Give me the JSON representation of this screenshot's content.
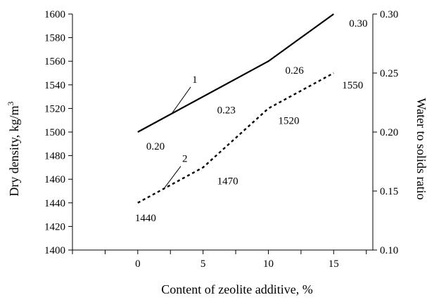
{
  "chart_data": {
    "type": "line",
    "xlabel": "Content of zeolite additive, %",
    "ylabel_left": "Dry density, kg/m",
    "ylabel_left_sup": "3",
    "ylabel_right": "Water to solids ratio",
    "x_ticks": [
      "0",
      "5",
      "10",
      "15"
    ],
    "xlim": [
      -5,
      18
    ],
    "ylim_left": [
      1400,
      1600
    ],
    "y_left_ticks": [
      "1400",
      "1420",
      "1440",
      "1460",
      "1480",
      "1500",
      "1520",
      "1540",
      "1560",
      "1580",
      "1600"
    ],
    "ylim_right": [
      0.1,
      0.3
    ],
    "y_right_ticks": [
      "0.10",
      "0.15",
      "0.20",
      "0.25",
      "0.30"
    ],
    "grid": false,
    "legend": "none",
    "series": [
      {
        "name": "1",
        "axis": "right",
        "style": "solid",
        "x": [
          0,
          10,
          15
        ],
        "y": [
          0.2,
          0.26,
          0.3
        ]
      },
      {
        "name": "2",
        "axis": "left",
        "style": "dotted",
        "x": [
          0,
          2,
          5,
          10,
          15
        ],
        "y": [
          1440,
          1452,
          1470,
          1520,
          1550
        ]
      }
    ],
    "point_labels": [
      {
        "text": "0.20",
        "series": 0,
        "x": 0,
        "y": 0.2
      },
      {
        "text": "0.23",
        "series": 0,
        "x": 5,
        "y": 0.23
      },
      {
        "text": "0.26",
        "series": 0,
        "x": 10,
        "y": 0.26
      },
      {
        "text": "0.30",
        "series": 0,
        "x": 15,
        "y": 0.3
      },
      {
        "text": "1440",
        "series": 1,
        "x": 0,
        "y": 1440
      },
      {
        "text": "1470",
        "series": 1,
        "x": 5,
        "y": 1470
      },
      {
        "text": "1520",
        "series": 1,
        "x": 10,
        "y": 1520
      },
      {
        "text": "1550",
        "series": 1,
        "x": 15,
        "y": 1550
      }
    ]
  }
}
